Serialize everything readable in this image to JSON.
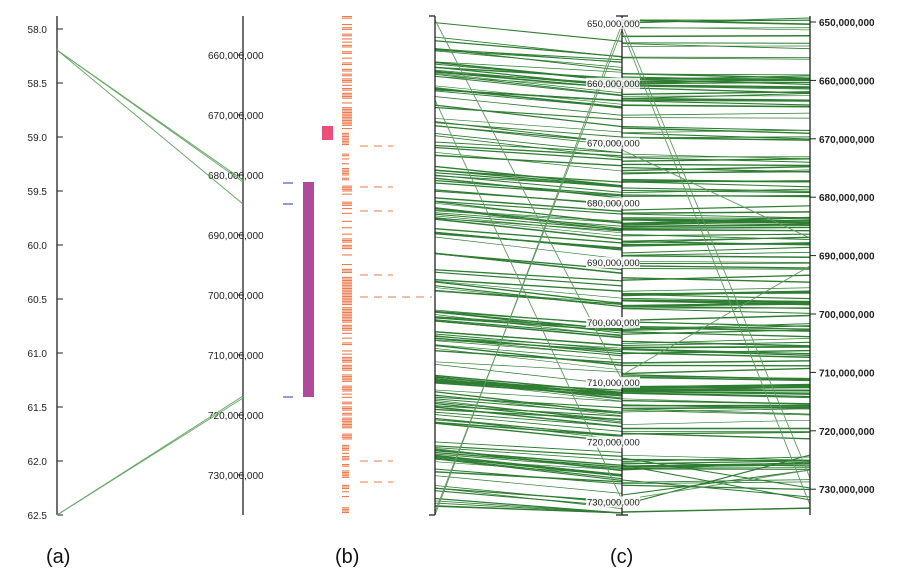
{
  "panels": [
    {
      "id": "a",
      "label": "(a)"
    },
    {
      "id": "b",
      "label": "(b)"
    },
    {
      "id": "c",
      "label": "(c)"
    }
  ],
  "colors": {
    "synteny": "#2e7d32",
    "synteny_light": "#6aa86a",
    "qtl_bar": "#b04a9c",
    "qtl_marker": "#6b6bd6",
    "peak_block": "#e8507a",
    "density": "#ee7a4e",
    "axis": "#222222"
  },
  "panel_a": {
    "cm_ticks": [
      "58.0",
      "58.5",
      "59.0",
      "59.5",
      "60.0",
      "60.5",
      "61.0",
      "61.5",
      "62.0",
      "62.5"
    ],
    "bp_ticks": [
      "660,000,000",
      "670,000,000",
      "680,000,000",
      "690,000,000",
      "700,000,000",
      "710,000,000",
      "720,000,000",
      "730,000,000"
    ]
  },
  "panel_c": {
    "left_ticks": [
      "650,000,000",
      "660,000,000",
      "670,000,000",
      "680,000,000",
      "690,000,000",
      "700,000,000",
      "710,000,000",
      "720,000,000",
      "730,000,000"
    ],
    "right_ticks": [
      "650,000,000",
      "660,000,000",
      "670,000,000",
      "680,000,000",
      "690,000,000",
      "700,000,000",
      "710,000,000",
      "720,000,000",
      "730,000,000"
    ]
  }
}
